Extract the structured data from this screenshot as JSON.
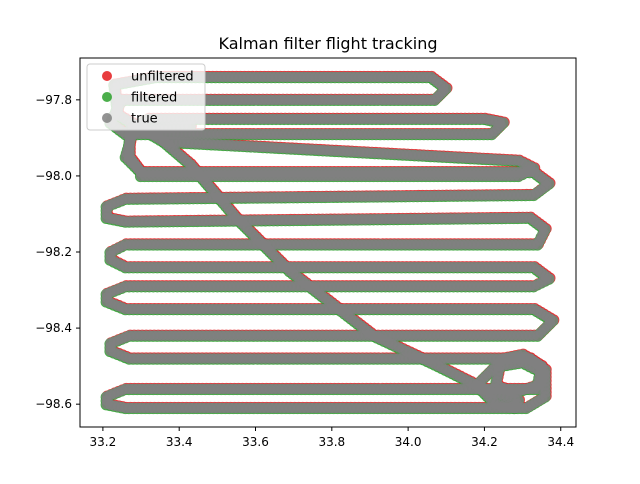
{
  "chart_data": {
    "type": "scatter",
    "title": "Kalman filter flight tracking",
    "xlabel": "",
    "ylabel": "",
    "xlim": [
      33.14,
      34.44
    ],
    "ylim": [
      -98.66,
      -97.69
    ],
    "xticks": [
      33.2,
      33.4,
      33.6,
      33.8,
      34.0,
      34.2,
      34.4
    ],
    "xtick_labels": [
      "33.2",
      "33.4",
      "33.6",
      "33.8",
      "34.0",
      "34.2",
      "34.4"
    ],
    "yticks": [
      -97.8,
      -98.0,
      -98.2,
      -98.4,
      -98.6
    ],
    "ytick_labels": [
      "−97.8",
      "−98.0",
      "−98.2",
      "−98.4",
      "−98.6"
    ],
    "grid": false,
    "legend_position": "top-left",
    "series": [
      {
        "name": "unfiltered",
        "color": "#e41a1c"
      },
      {
        "name": "filtered",
        "color": "#2ca02c"
      },
      {
        "name": "true",
        "color": "#808080"
      }
    ],
    "track": [
      [
        33.43,
        -97.87
      ],
      [
        33.28,
        -97.88
      ],
      [
        33.26,
        -97.95
      ],
      [
        33.3,
        -97.99
      ],
      [
        33.3,
        -98.0
      ],
      [
        34.29,
        -98.0
      ],
      [
        34.33,
        -97.98
      ],
      [
        34.29,
        -97.96
      ],
      [
        33.36,
        -97.91
      ],
      [
        33.24,
        -97.84
      ],
      [
        33.23,
        -97.76
      ],
      [
        33.34,
        -97.74
      ],
      [
        34.06,
        -97.74
      ],
      [
        34.1,
        -97.77
      ],
      [
        34.07,
        -97.8
      ],
      [
        33.25,
        -97.8
      ],
      [
        33.22,
        -97.86
      ],
      [
        33.26,
        -97.89
      ],
      [
        34.22,
        -97.89
      ],
      [
        34.25,
        -97.86
      ],
      [
        34.2,
        -97.85
      ],
      [
        33.32,
        -97.85
      ],
      [
        33.27,
        -97.88
      ],
      [
        33.27,
        -97.95
      ],
      [
        33.3,
        -97.99
      ],
      [
        34.33,
        -97.99
      ],
      [
        34.37,
        -98.02
      ],
      [
        34.33,
        -98.05
      ],
      [
        33.26,
        -98.06
      ],
      [
        33.21,
        -98.08
      ],
      [
        33.21,
        -98.11
      ],
      [
        33.26,
        -98.12
      ],
      [
        34.32,
        -98.11
      ],
      [
        34.36,
        -98.14
      ],
      [
        34.34,
        -98.18
      ],
      [
        33.26,
        -98.18
      ],
      [
        33.22,
        -98.2
      ],
      [
        33.22,
        -98.22
      ],
      [
        33.26,
        -98.24
      ],
      [
        34.33,
        -98.24
      ],
      [
        34.37,
        -98.27
      ],
      [
        34.33,
        -98.29
      ],
      [
        33.26,
        -98.29
      ],
      [
        33.21,
        -98.31
      ],
      [
        33.21,
        -98.33
      ],
      [
        33.26,
        -98.35
      ],
      [
        34.33,
        -98.35
      ],
      [
        34.38,
        -98.38
      ],
      [
        34.34,
        -98.42
      ],
      [
        33.27,
        -98.42
      ],
      [
        33.22,
        -98.44
      ],
      [
        33.22,
        -98.46
      ],
      [
        33.27,
        -98.48
      ],
      [
        34.32,
        -98.48
      ],
      [
        34.36,
        -98.51
      ],
      [
        34.34,
        -98.56
      ],
      [
        33.26,
        -98.56
      ],
      [
        33.21,
        -98.58
      ],
      [
        33.21,
        -98.6
      ],
      [
        33.26,
        -98.61
      ],
      [
        34.31,
        -98.61
      ],
      [
        34.36,
        -98.58
      ],
      [
        34.36,
        -98.52
      ],
      [
        34.3,
        -98.49
      ],
      [
        34.24,
        -98.5
      ],
      [
        34.23,
        -98.55
      ],
      [
        34.28,
        -98.57
      ],
      [
        34.34,
        -98.55
      ],
      [
        34.35,
        -98.5
      ],
      [
        34.3,
        -98.47
      ],
      [
        34.25,
        -98.48
      ],
      [
        34.18,
        -98.55
      ],
      [
        34.23,
        -98.6
      ],
      [
        34.28,
        -98.61
      ],
      [
        34.29,
        -98.59
      ],
      [
        34.22,
        -98.57
      ],
      [
        34.08,
        -98.5
      ],
      [
        33.91,
        -98.42
      ],
      [
        33.69,
        -98.25
      ],
      [
        33.55,
        -98.11
      ],
      [
        33.43,
        -97.97
      ],
      [
        33.36,
        -97.91
      ]
    ]
  }
}
